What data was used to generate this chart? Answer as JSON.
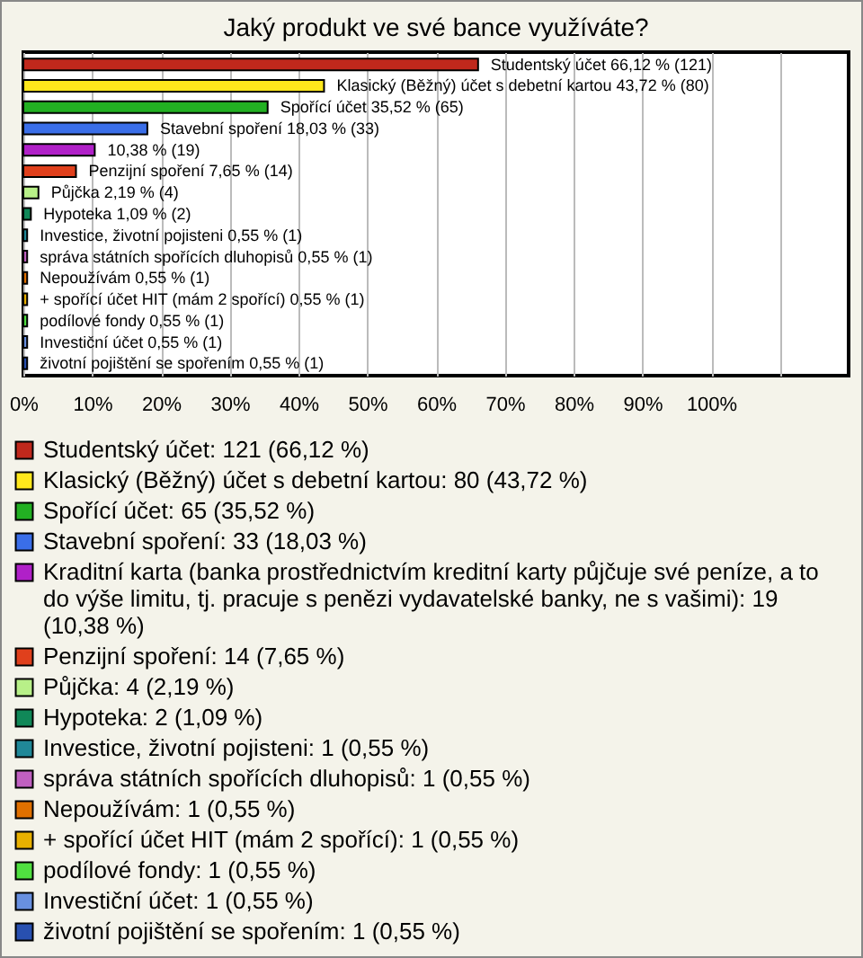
{
  "chart_data": {
    "type": "bar",
    "orientation": "horizontal",
    "stacked": true,
    "title": "Jaký produkt ve své bance využíváte?",
    "categories": [
      "Studentský účet",
      "Klasický (Běžný) účet s debetní kartou",
      "Spořící účet",
      "Stavební spoření",
      null,
      "Penzijní spoření",
      "Půjčka",
      "Hypoteka",
      "Investice, životní pojisteni",
      "správa státních spořících dluhopisů",
      "Nepoužívám",
      "+ spořící účet HIT (mám 2 spořící)",
      "podílové fondy",
      "Investiční účet",
      "životní pojištění se spořením"
    ],
    "series": [
      {
        "name": "Studentský účet: 121 (66,12 %)",
        "color": "#c0281c",
        "values": [
          66.12,
          null,
          null,
          null,
          null,
          null,
          null,
          null,
          null,
          null,
          null,
          null,
          null,
          null,
          null
        ],
        "value_labels": [
          "66,12 % (121)",
          null,
          null,
          null,
          null,
          null,
          null,
          null,
          null,
          null,
          null,
          null,
          null,
          null,
          null
        ]
      },
      {
        "name": "Klasický (Běžný) účet s debetní kartou: 80 (43,72 %)",
        "color": "#ffe81c",
        "values": [
          null,
          43.72,
          null,
          null,
          null,
          null,
          null,
          null,
          null,
          null,
          null,
          null,
          null,
          null,
          null
        ],
        "value_labels": [
          null,
          "43,72 % (80)",
          null,
          null,
          null,
          null,
          null,
          null,
          null,
          null,
          null,
          null,
          null,
          null,
          null
        ]
      },
      {
        "name": "Spořící účet: 65 (35,52 %)",
        "color": "#22b022",
        "values": [
          null,
          null,
          35.52,
          null,
          null,
          null,
          null,
          null,
          null,
          null,
          null,
          null,
          null,
          null,
          null
        ],
        "value_labels": [
          null,
          null,
          "35,52 % (65)",
          null,
          null,
          null,
          null,
          null,
          null,
          null,
          null,
          null,
          null,
          null,
          null
        ]
      },
      {
        "name": "Stavební spoření: 33 (18,03 %)",
        "color": "#3a6ee8",
        "values": [
          null,
          null,
          null,
          18.03,
          null,
          null,
          null,
          null,
          null,
          null,
          null,
          null,
          null,
          null,
          null
        ],
        "value_labels": [
          null,
          null,
          null,
          "18,03 % (33)",
          null,
          null,
          null,
          null,
          null,
          null,
          null,
          null,
          null,
          null,
          null
        ]
      },
      {
        "name": "Kraditní karta (banka prostřednictvím kreditní karty půjčuje své peníze, a to do výše limitu, tj. pracuje s penězi vydavatelské banky, ne s vašimi): 19 (10,38 %)",
        "color": "#b020c8",
        "values": [
          null,
          null,
          null,
          null,
          10.38,
          null,
          null,
          null,
          null,
          null,
          null,
          null,
          null,
          null,
          null
        ],
        "value_labels": [
          null,
          null,
          null,
          null,
          "10,38 % (19)",
          null,
          null,
          null,
          null,
          null,
          null,
          null,
          null,
          null,
          null
        ]
      },
      {
        "name": "Penzijní spoření: 14 (7,65 %)",
        "color": "#e0401c",
        "values": [
          null,
          null,
          null,
          null,
          null,
          7.65,
          null,
          null,
          null,
          null,
          null,
          null,
          null,
          null,
          null
        ],
        "value_labels": [
          null,
          null,
          null,
          null,
          null,
          "7,65 % (14)",
          null,
          null,
          null,
          null,
          null,
          null,
          null,
          null,
          null
        ]
      },
      {
        "name": "Půjčka: 4 (2,19 %)",
        "color": "#b8f088",
        "values": [
          null,
          null,
          null,
          null,
          null,
          null,
          2.19,
          null,
          null,
          null,
          null,
          null,
          null,
          null,
          null
        ],
        "value_labels": [
          null,
          null,
          null,
          null,
          null,
          null,
          "2,19 % (4)",
          null,
          null,
          null,
          null,
          null,
          null,
          null,
          null
        ]
      },
      {
        "name": "Hypoteka: 2 (1,09 %)",
        "color": "#108858",
        "values": [
          null,
          null,
          null,
          null,
          null,
          null,
          null,
          1.09,
          null,
          null,
          null,
          null,
          null,
          null,
          null
        ],
        "value_labels": [
          null,
          null,
          null,
          null,
          null,
          null,
          null,
          "1,09 % (2)",
          null,
          null,
          null,
          null,
          null,
          null,
          null
        ]
      },
      {
        "name": "Investice, životní pojisteni: 1 (0,55 %)",
        "color": "#208898",
        "values": [
          null,
          null,
          null,
          null,
          null,
          null,
          null,
          null,
          0.55,
          null,
          null,
          null,
          null,
          null,
          null
        ],
        "value_labels": [
          null,
          null,
          null,
          null,
          null,
          null,
          null,
          null,
          "0,55 % (1)",
          null,
          null,
          null,
          null,
          null,
          null
        ]
      },
      {
        "name": "správa státních spořících dluhopisů: 1 (0,55 %)",
        "color": "#c060c0",
        "values": [
          null,
          null,
          null,
          null,
          null,
          null,
          null,
          null,
          null,
          0.55,
          null,
          null,
          null,
          null,
          null
        ],
        "value_labels": [
          null,
          null,
          null,
          null,
          null,
          null,
          null,
          null,
          null,
          "0,55 % (1)",
          null,
          null,
          null,
          null,
          null
        ]
      },
      {
        "name": "Nepoužívám: 1 (0,55 %)",
        "color": "#e07000",
        "values": [
          null,
          null,
          null,
          null,
          null,
          null,
          null,
          null,
          null,
          null,
          0.55,
          null,
          null,
          null,
          null
        ],
        "value_labels": [
          null,
          null,
          null,
          null,
          null,
          null,
          null,
          null,
          null,
          null,
          "0,55 % (1)",
          null,
          null,
          null,
          null
        ]
      },
      {
        "name": "+ spořící účet HIT (mám 2 spořící): 1 (0,55 %)",
        "color": "#e8b000",
        "values": [
          null,
          null,
          null,
          null,
          null,
          null,
          null,
          null,
          null,
          null,
          null,
          0.55,
          null,
          null,
          null
        ],
        "value_labels": [
          null,
          null,
          null,
          null,
          null,
          null,
          null,
          null,
          null,
          null,
          null,
          "0,55 % (1)",
          null,
          null,
          null
        ]
      },
      {
        "name": "podílové fondy: 1 (0,55 %)",
        "color": "#50e040",
        "values": [
          null,
          null,
          null,
          null,
          null,
          null,
          null,
          null,
          null,
          null,
          null,
          null,
          0.55,
          null,
          null
        ],
        "value_labels": [
          null,
          null,
          null,
          null,
          null,
          null,
          null,
          null,
          null,
          null,
          null,
          null,
          "0,55 % (1)",
          null,
          null
        ]
      },
      {
        "name": "Investiční účet: 1 (0,55 %)",
        "color": "#6890e0",
        "values": [
          null,
          null,
          null,
          null,
          null,
          null,
          null,
          null,
          null,
          null,
          null,
          null,
          null,
          0.55,
          null
        ],
        "value_labels": [
          null,
          null,
          null,
          null,
          null,
          null,
          null,
          null,
          null,
          null,
          null,
          null,
          null,
          "0,55 % (1)",
          null
        ]
      },
      {
        "name": "životní pojištění se spořením: 1 (0,55 %)",
        "color": "#2850b0",
        "values": [
          null,
          null,
          null,
          null,
          null,
          null,
          null,
          null,
          null,
          null,
          null,
          null,
          null,
          null,
          0.55
        ],
        "value_labels": [
          null,
          null,
          null,
          null,
          null,
          null,
          null,
          null,
          null,
          null,
          null,
          null,
          null,
          null,
          "0,55 % (1)"
        ]
      }
    ],
    "xlim": [
      0,
      120
    ],
    "xticks": [
      {
        "value": 0,
        "label": "0%"
      },
      {
        "value": 10,
        "label": "10%"
      },
      {
        "value": 20,
        "label": "20%"
      },
      {
        "value": 30,
        "label": "30%"
      },
      {
        "value": 40,
        "label": "40%"
      },
      {
        "value": 50,
        "label": "50%"
      },
      {
        "value": 60,
        "label": "60%"
      },
      {
        "value": 70,
        "label": "70%"
      },
      {
        "value": 80,
        "label": "80%"
      },
      {
        "value": 90,
        "label": "90%"
      },
      {
        "value": 100,
        "label": "100%"
      },
      {
        "value": 110,
        "label": null
      }
    ],
    "grid": "x",
    "tick_labels": "x",
    "legend": "bottom"
  }
}
